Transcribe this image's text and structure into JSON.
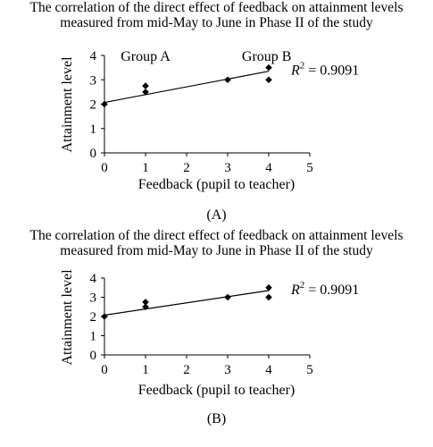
{
  "chart_data": [
    {
      "type": "scatter",
      "title_lines": [
        "The correlation of the direct effect of feedback on attainment levels",
        "measured from mid-May to June in Phase II of the study"
      ],
      "xlabel": "Feedback (pupil to teacher)",
      "ylabel": "Attainment level",
      "xlim": [
        0,
        5
      ],
      "ylim": [
        0,
        4
      ],
      "xticks": [
        "0",
        "1",
        "2",
        "3",
        "4",
        "5"
      ],
      "yticks": [
        "0",
        "1",
        "2",
        "3",
        "4"
      ],
      "points": [
        {
          "x": 0,
          "y": 2.0
        },
        {
          "x": 1,
          "y": 2.5
        },
        {
          "x": 1,
          "y": 2.75
        },
        {
          "x": 3,
          "y": 3.0
        },
        {
          "x": 4,
          "y": 3.0
        },
        {
          "x": 4,
          "y": 3.5
        }
      ],
      "trendline": {
        "type": "linear",
        "x": [
          0,
          4
        ],
        "y": [
          2.07,
          3.35
        ]
      },
      "r2_label": "R",
      "r2_value": "= 0.9091",
      "annotations": [
        {
          "text": "Group A",
          "x": 1.0,
          "y": 3.78
        },
        {
          "text": "Group B",
          "x": 3.95,
          "y": 3.78
        }
      ],
      "caption": "(A)"
    },
    {
      "type": "scatter",
      "title_lines": [
        "The correlation of the direct effect of feedback on attainment levels",
        "measured from mid-May to June in Phase II of the study"
      ],
      "xlabel": "Feedback (pupil to teacher)",
      "ylabel": "Attainment level",
      "xlim": [
        0,
        5
      ],
      "ylim": [
        0,
        4
      ],
      "xticks": [
        "0",
        "1",
        "2",
        "3",
        "4",
        "5"
      ],
      "yticks": [
        "0",
        "1",
        "2",
        "3",
        "4"
      ],
      "points": [
        {
          "x": 0,
          "y": 2.0
        },
        {
          "x": 1,
          "y": 2.5
        },
        {
          "x": 1,
          "y": 2.75
        },
        {
          "x": 3,
          "y": 3.0
        },
        {
          "x": 4,
          "y": 3.0
        },
        {
          "x": 4,
          "y": 3.5
        }
      ],
      "trendline": {
        "type": "linear",
        "x": [
          0,
          4
        ],
        "y": [
          2.07,
          3.35
        ]
      },
      "r2_label": "R",
      "r2_value": "= 0.9091",
      "annotations": [],
      "caption": "(B)"
    }
  ]
}
